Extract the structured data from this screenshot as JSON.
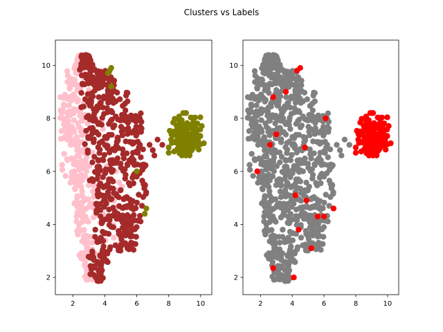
{
  "figure": {
    "title": "Clusters vs Labels"
  },
  "chart_data": [
    {
      "type": "scatter",
      "panel": "left",
      "title": "",
      "xlabel": "",
      "ylabel": "",
      "xlim": [
        0.9,
        10.7
      ],
      "ylim": [
        1.35,
        10.95
      ],
      "xticks": [
        2,
        4,
        6,
        8,
        10
      ],
      "yticks": [
        2,
        4,
        6,
        8,
        10
      ],
      "grid": false,
      "legend": "none",
      "series": [
        {
          "color": "#ffc0cb",
          "points": []
        },
        {
          "color": "#a52a2a",
          "points": []
        },
        {
          "color": "#808000",
          "points": []
        }
      ]
    },
    {
      "type": "scatter",
      "panel": "right",
      "title": "",
      "xlabel": "",
      "ylabel": "",
      "xlim": [
        0.9,
        10.7
      ],
      "ylim": [
        1.35,
        10.95
      ],
      "xticks": [
        2,
        4,
        6,
        8,
        10
      ],
      "yticks": [
        2,
        4,
        6,
        8,
        10
      ],
      "grid": false,
      "legend": "none",
      "series": [
        {
          "color": "#808080",
          "points": []
        },
        {
          "color": "#ff0000",
          "points": []
        }
      ]
    }
  ]
}
